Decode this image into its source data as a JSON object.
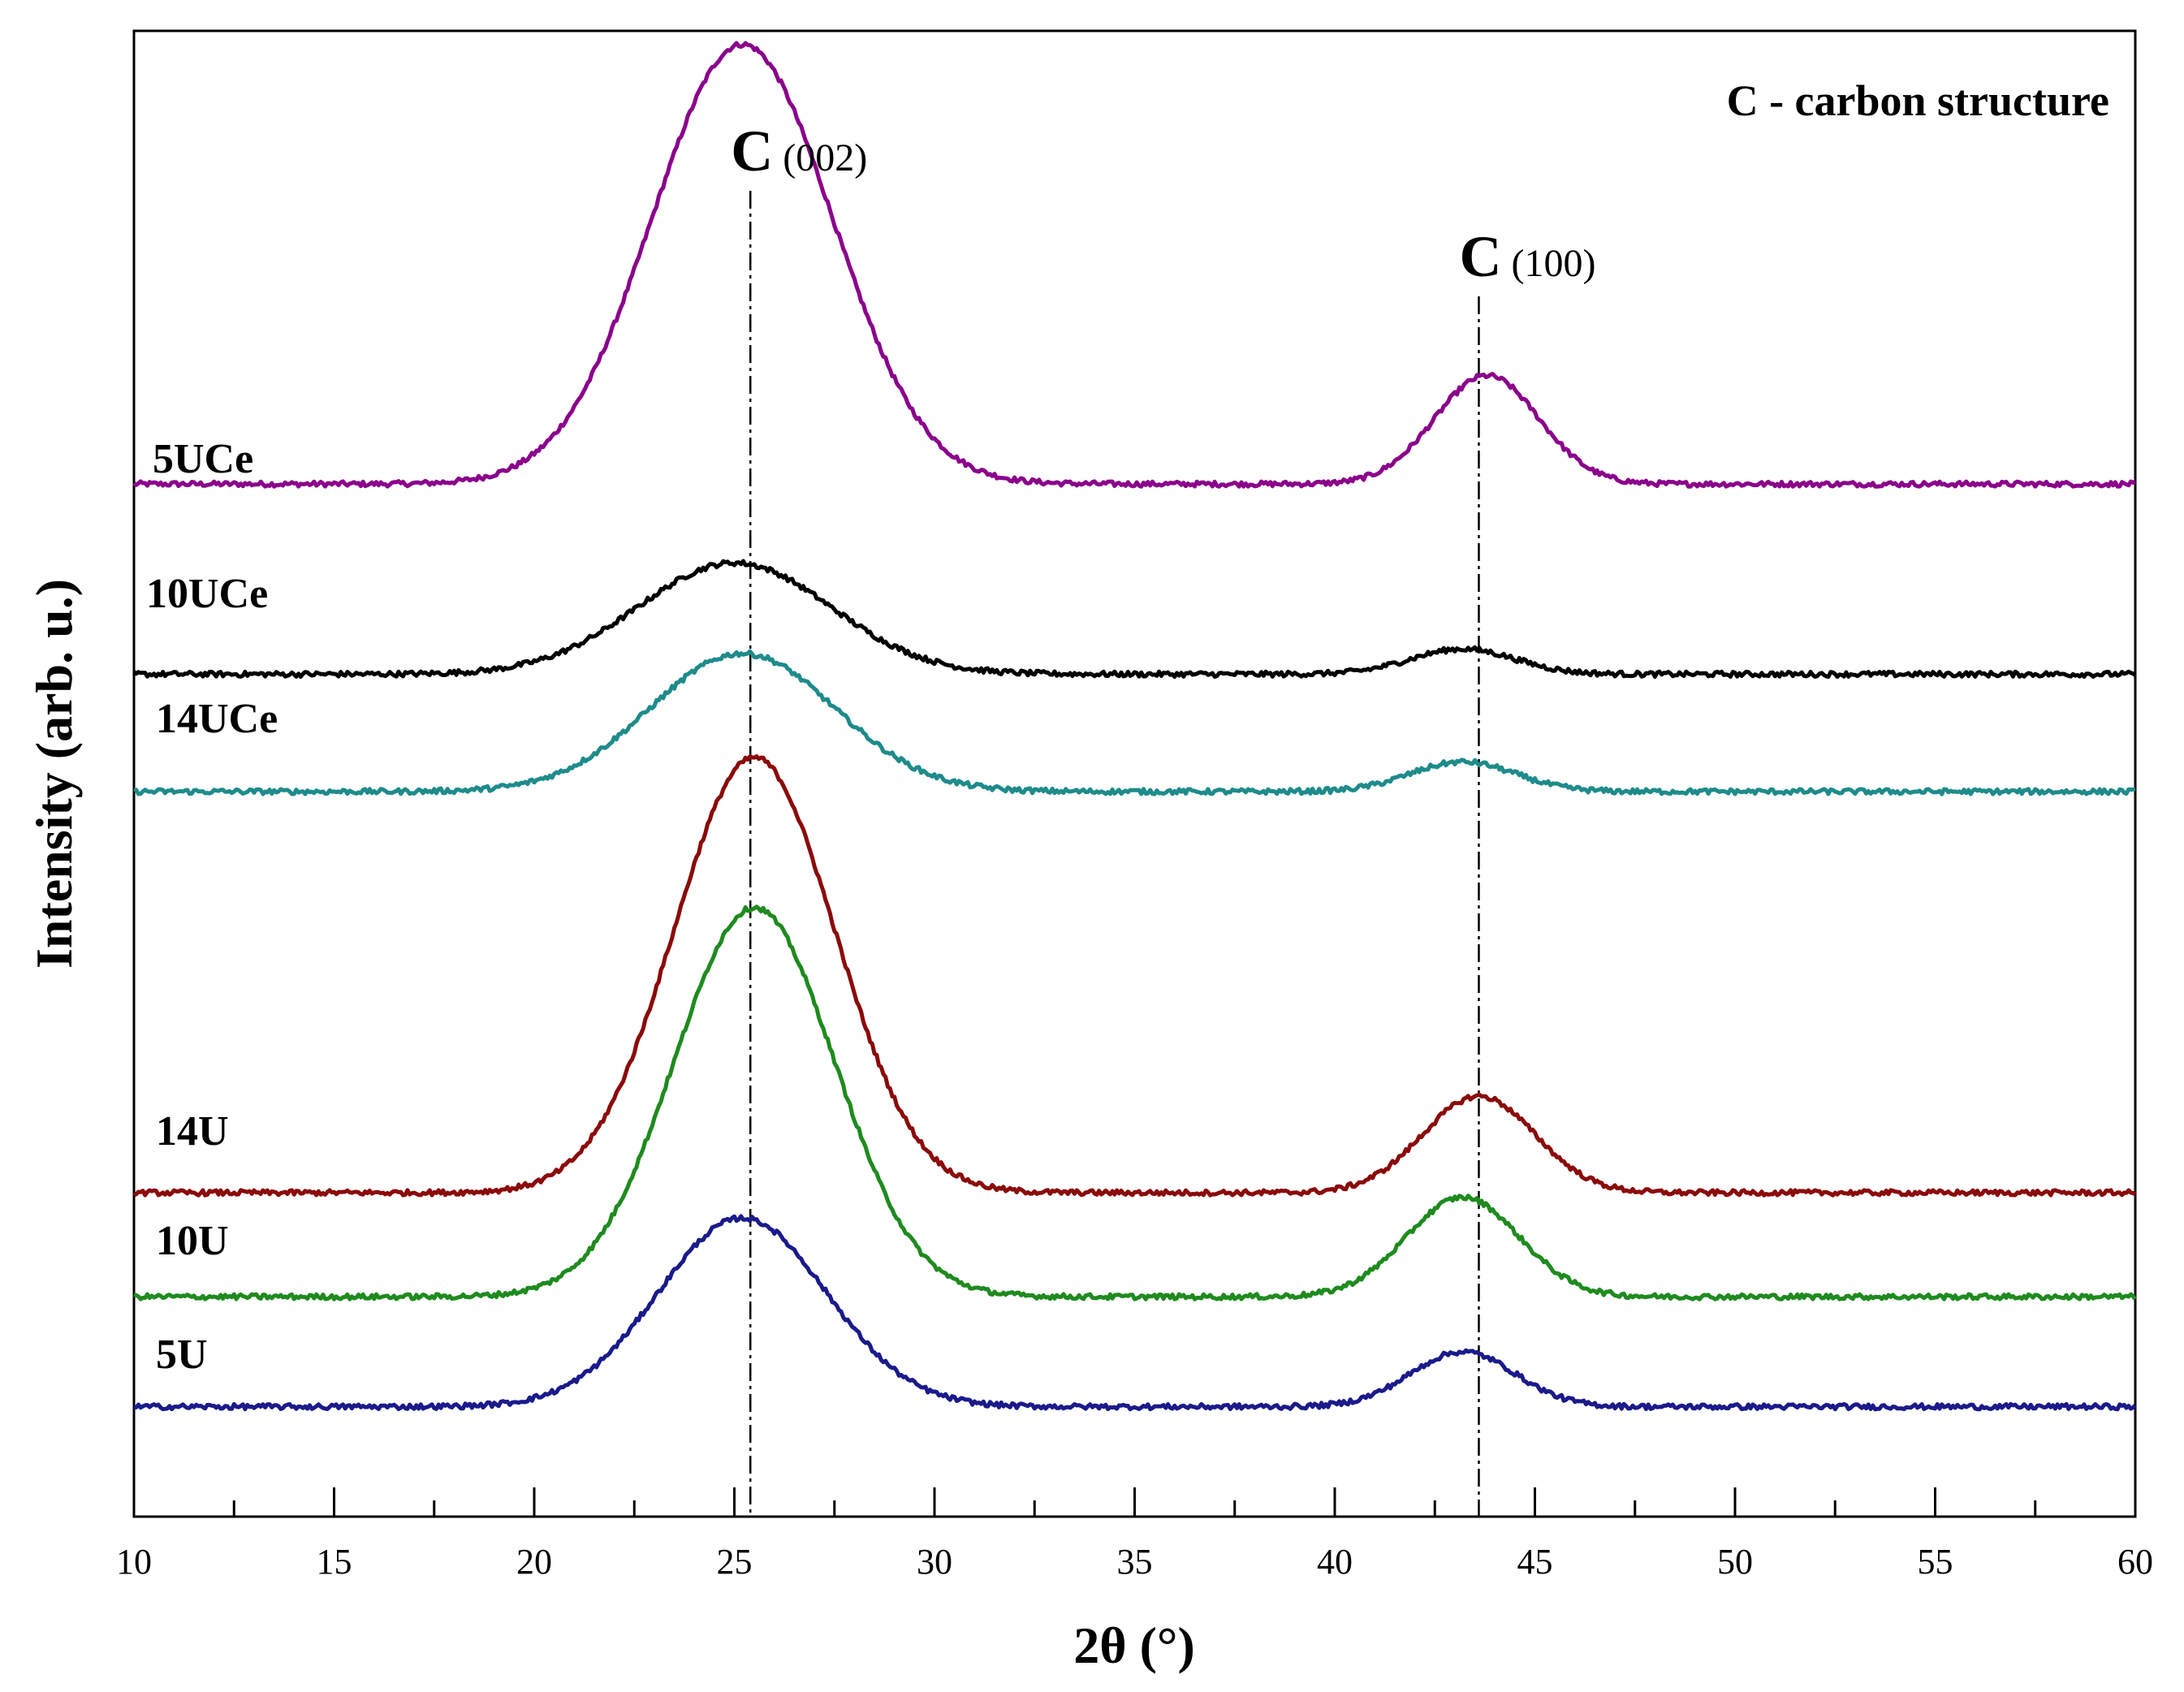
{
  "chart_data": {
    "type": "line",
    "title": "",
    "xlabel": "2θ (°)",
    "ylabel": "Intensity (arb. u.)",
    "xlim": [
      10,
      60
    ],
    "ylim": [
      0,
      1
    ],
    "x_ticks": [
      10,
      15,
      20,
      25,
      30,
      35,
      40,
      45,
      50,
      55,
      60
    ],
    "x_tick_labels": [
      "10",
      "15",
      "20",
      "25",
      "30",
      "35",
      "40",
      "45",
      "50",
      "55",
      "60"
    ],
    "x_minor_ticks": [
      12.5,
      17.5,
      22.5,
      27.5,
      32.5,
      37.5,
      42.5,
      47.5,
      52.5,
      57.5
    ],
    "annotation": "C - carbon structure",
    "reference_lines": [
      {
        "x": 25.4,
        "letter": "C",
        "index": "(002)"
      },
      {
        "x": 43.6,
        "letter": "C",
        "index": "(100)"
      }
    ],
    "series": [
      {
        "name": "5UCe",
        "color": "#8B008B",
        "baseline": 0.695,
        "peaks": [
          {
            "center": 25.2,
            "height": 0.296,
            "width": 2.25
          },
          {
            "center": 43.8,
            "height": 0.073,
            "width": 1.3
          }
        ]
      },
      {
        "name": "10UCe",
        "color": "#000000",
        "baseline": 0.567,
        "peaks": [
          {
            "center": 25.0,
            "height": 0.075,
            "width": 2.4
          },
          {
            "center": 43.2,
            "height": 0.017,
            "width": 1.3
          }
        ]
      },
      {
        "name": "14UCe",
        "color": "#1E8B8B",
        "baseline": 0.488,
        "peaks": [
          {
            "center": 25.2,
            "height": 0.093,
            "width": 2.3
          },
          {
            "center": 43.2,
            "height": 0.02,
            "width": 1.3
          }
        ]
      },
      {
        "name": "14U",
        "color": "#8B0A0A",
        "baseline": 0.218,
        "peaks": [
          {
            "center": 25.5,
            "height": 0.293,
            "width": 2.0
          },
          {
            "center": 43.6,
            "height": 0.065,
            "width": 1.4
          }
        ]
      },
      {
        "name": "10U",
        "color": "#1E8B1E",
        "baseline": 0.148,
        "peaks": [
          {
            "center": 25.5,
            "height": 0.262,
            "width": 2.0
          },
          {
            "center": 43.2,
            "height": 0.067,
            "width": 1.4
          }
        ]
      },
      {
        "name": "5U",
        "color": "#1A1A8B",
        "baseline": 0.074,
        "peaks": [
          {
            "center": 25.2,
            "height": 0.127,
            "width": 2.1
          },
          {
            "center": 43.2,
            "height": 0.037,
            "width": 1.3
          }
        ]
      }
    ]
  }
}
